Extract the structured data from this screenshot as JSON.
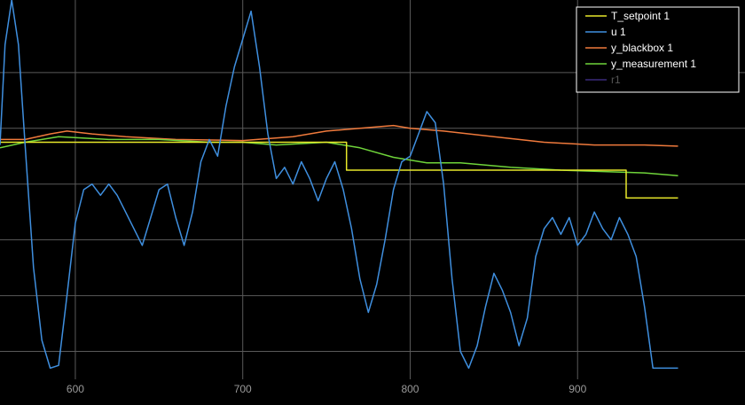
{
  "chart_data": {
    "type": "line",
    "title": "",
    "xlabel": "",
    "ylabel": "",
    "xlim": [
      555,
      1000
    ],
    "ylim": [
      -2.0,
      4.8
    ],
    "grid": true,
    "background": "#000000",
    "x_ticks": [
      600,
      700,
      800,
      900
    ],
    "y_ticks": [
      -1.5,
      -0.5,
      0.5,
      1.5,
      2.5,
      3.5
    ],
    "legend_position": "top-right",
    "series": [
      {
        "name": "T_setpoint 1",
        "color": "#e8e82a",
        "x": [
          555,
          762,
          762,
          929,
          929,
          960
        ],
        "y": [
          2.25,
          2.25,
          1.75,
          1.75,
          1.25,
          1.25
        ]
      },
      {
        "name": "u 1",
        "color": "#3f8fdf",
        "x": [
          555,
          558,
          562,
          566,
          570,
          575,
          580,
          585,
          590,
          595,
          600,
          605,
          610,
          615,
          620,
          625,
          630,
          635,
          640,
          645,
          650,
          655,
          660,
          665,
          670,
          675,
          680,
          685,
          690,
          695,
          700,
          705,
          710,
          715,
          720,
          725,
          730,
          735,
          740,
          745,
          750,
          755,
          760,
          765,
          770,
          775,
          780,
          785,
          790,
          795,
          800,
          805,
          810,
          815,
          820,
          825,
          830,
          835,
          840,
          845,
          850,
          855,
          860,
          865,
          870,
          875,
          880,
          885,
          890,
          895,
          900,
          905,
          910,
          915,
          920,
          925,
          930,
          935,
          940,
          945,
          960
        ],
        "y": [
          2.2,
          4.0,
          4.8,
          4.0,
          2.2,
          0.0,
          -1.3,
          -1.8,
          -1.75,
          -0.5,
          0.8,
          1.4,
          1.5,
          1.3,
          1.5,
          1.3,
          1.0,
          0.7,
          0.4,
          0.9,
          1.4,
          1.5,
          0.9,
          0.4,
          1.0,
          1.9,
          2.3,
          2.0,
          2.9,
          3.6,
          4.1,
          4.6,
          3.6,
          2.4,
          1.6,
          1.8,
          1.5,
          1.9,
          1.6,
          1.2,
          1.6,
          1.9,
          1.4,
          0.7,
          -0.2,
          -0.8,
          -0.3,
          0.5,
          1.4,
          1.9,
          2.0,
          2.4,
          2.8,
          2.6,
          1.5,
          -0.2,
          -1.5,
          -1.8,
          -1.4,
          -0.7,
          -0.1,
          -0.4,
          -0.8,
          -1.4,
          -0.9,
          0.2,
          0.7,
          0.9,
          0.6,
          0.9,
          0.4,
          0.6,
          1.0,
          0.7,
          0.5,
          0.9,
          0.6,
          0.2,
          -0.7,
          -1.8,
          -1.8
        ]
      },
      {
        "name": "y_blackbox 1",
        "color": "#f07a3c",
        "x": [
          555,
          570,
          585,
          595,
          610,
          630,
          660,
          700,
          730,
          750,
          770,
          790,
          800,
          820,
          850,
          880,
          910,
          940,
          960
        ],
        "y": [
          2.3,
          2.3,
          2.4,
          2.45,
          2.4,
          2.35,
          2.3,
          2.28,
          2.35,
          2.45,
          2.5,
          2.55,
          2.5,
          2.45,
          2.35,
          2.25,
          2.2,
          2.2,
          2.18
        ]
      },
      {
        "name": "y_measurement 1",
        "color": "#6fd43a",
        "x": [
          555,
          570,
          590,
          620,
          650,
          680,
          700,
          720,
          750,
          770,
          790,
          810,
          830,
          860,
          890,
          920,
          940,
          960
        ],
        "y": [
          2.15,
          2.25,
          2.35,
          2.3,
          2.3,
          2.25,
          2.25,
          2.2,
          2.25,
          2.15,
          1.98,
          1.88,
          1.88,
          1.8,
          1.75,
          1.72,
          1.7,
          1.65
        ]
      },
      {
        "name": "r1",
        "color": "#3b2a7a",
        "x": [],
        "y": []
      }
    ]
  }
}
